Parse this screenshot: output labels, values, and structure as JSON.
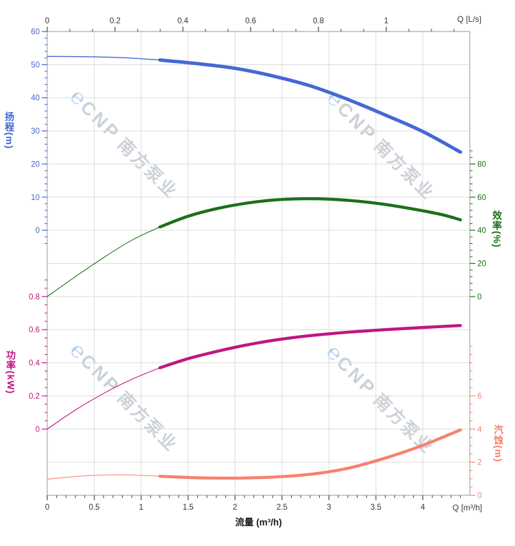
{
  "watermark": {
    "logo": "℮",
    "brand": "CNP",
    "name": "南方泵业"
  },
  "chart_data": {
    "type": "line",
    "title": "",
    "grid": true,
    "x_axis_bottom": {
      "label": "流量 (m³/h)",
      "corner_label": "Q [m³/h]",
      "domain": [
        0,
        4.5
      ],
      "major_ticks": [
        0,
        0.5,
        1,
        1.5,
        2,
        2.5,
        3,
        3.5,
        4
      ],
      "minor_div": 5,
      "minor_range": [
        0,
        4.4
      ],
      "tick_color": "#444444",
      "label_color": "#333333"
    },
    "x_axis_top": {
      "corner_label": "Q [L/s]",
      "domain": [
        0,
        1.2465
      ],
      "major_ticks": [
        0,
        0.2,
        0.4,
        0.6,
        0.8,
        1
      ],
      "minor_div": 3,
      "minor_range": [
        0,
        1.2
      ],
      "tick_color": "#444444",
      "label_color": "#333333"
    },
    "y_axes": [
      {
        "id": "head",
        "title": "扬程",
        "unit": "(m)",
        "side": "left",
        "color": "#4566cd",
        "domain": [
          60,
          -80
        ],
        "major_ticks": [
          60,
          50,
          40,
          30,
          20,
          10,
          0
        ],
        "minor_div": 5,
        "minor_range": [
          -4,
          60
        ]
      },
      {
        "id": "eff",
        "title": "效率",
        "unit": "(%)",
        "side": "right",
        "color": "#1a701a",
        "domain": [
          160,
          -120
        ],
        "major_ticks": [
          80,
          60,
          40,
          20,
          0
        ],
        "minor_div": 5,
        "minor_range": [
          0,
          88
        ]
      },
      {
        "id": "power",
        "title": "功率",
        "unit": "(kW)",
        "side": "left",
        "color": "#c01583",
        "domain": [
          2.4,
          -0.4
        ],
        "major_ticks": [
          0.8,
          0.6,
          0.4,
          0.2,
          0
        ],
        "minor_div": 4,
        "minor_range": [
          0,
          0.9
        ]
      },
      {
        "id": "npsh",
        "title": "汽蚀",
        "unit": "(m)",
        "side": "right",
        "color": "#f8806e",
        "domain": [
          28,
          0
        ],
        "major_ticks": [
          6,
          4,
          2,
          0
        ],
        "minor_div": 4,
        "minor_range": [
          0,
          9
        ]
      }
    ],
    "series": [
      {
        "name": "扬程 (Head)",
        "axis": "head",
        "color": "#4468d4",
        "thin_until": 1.2,
        "points": [
          [
            0,
            52.5
          ],
          [
            0.4,
            52.4
          ],
          [
            0.8,
            52.1
          ],
          [
            1.2,
            51.4
          ],
          [
            1.6,
            50.3
          ],
          [
            2,
            48.9
          ],
          [
            2.4,
            46.6
          ],
          [
            2.8,
            43.6
          ],
          [
            3.2,
            39.5
          ],
          [
            3.6,
            34.8
          ],
          [
            4,
            29.8
          ],
          [
            4.4,
            23.6
          ]
        ]
      },
      {
        "name": "效率 (Efficiency)",
        "axis": "eff",
        "color": "#1a701a",
        "thin_until": 1.2,
        "points": [
          [
            0,
            0
          ],
          [
            0.3,
            12
          ],
          [
            0.6,
            23.5
          ],
          [
            0.9,
            34
          ],
          [
            1.2,
            42
          ],
          [
            1.5,
            48.5
          ],
          [
            1.8,
            53
          ],
          [
            2.1,
            56.2
          ],
          [
            2.4,
            58.2
          ],
          [
            2.7,
            59
          ],
          [
            3,
            58.8
          ],
          [
            3.3,
            57.6
          ],
          [
            3.6,
            55.6
          ],
          [
            3.9,
            52.8
          ],
          [
            4.2,
            49.5
          ],
          [
            4.4,
            46.3
          ]
        ]
      },
      {
        "name": "功率 (Power)",
        "axis": "power",
        "color": "#c01583",
        "thin_until": 1.2,
        "points": [
          [
            0,
            0
          ],
          [
            0.3,
            0.115
          ],
          [
            0.6,
            0.215
          ],
          [
            0.9,
            0.3
          ],
          [
            1.2,
            0.37
          ],
          [
            1.5,
            0.425
          ],
          [
            1.8,
            0.468
          ],
          [
            2.1,
            0.505
          ],
          [
            2.4,
            0.535
          ],
          [
            2.7,
            0.558
          ],
          [
            3,
            0.575
          ],
          [
            3.3,
            0.589
          ],
          [
            3.6,
            0.6
          ],
          [
            3.9,
            0.61
          ],
          [
            4.2,
            0.619
          ],
          [
            4.4,
            0.625
          ]
        ]
      },
      {
        "name": "汽蚀 (NPSH)",
        "axis": "npsh",
        "color": "#f8806e",
        "thin_until": 1.2,
        "points": [
          [
            0,
            0.97
          ],
          [
            0.4,
            1.18
          ],
          [
            0.8,
            1.24
          ],
          [
            1.2,
            1.15
          ],
          [
            1.6,
            1.06
          ],
          [
            2,
            1.04
          ],
          [
            2.4,
            1.1
          ],
          [
            2.8,
            1.27
          ],
          [
            3.2,
            1.63
          ],
          [
            3.6,
            2.25
          ],
          [
            4,
            3.02
          ],
          [
            4.4,
            3.95
          ]
        ]
      }
    ]
  }
}
